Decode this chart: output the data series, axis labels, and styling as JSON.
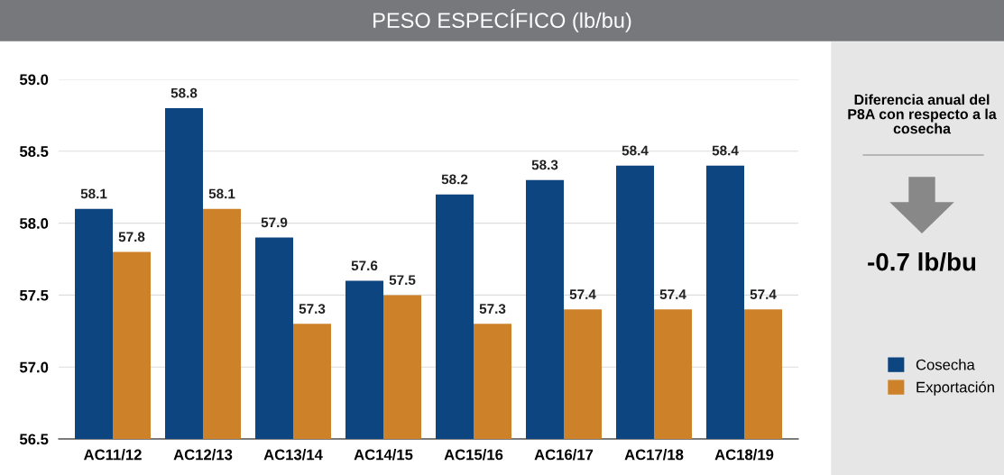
{
  "chart_data": {
    "type": "bar",
    "title": "PESO ESPECÍFICO (lb/bu)",
    "categories": [
      "AC11/12",
      "AC12/13",
      "AC13/14",
      "AC14/15",
      "AC15/16",
      "AC16/17",
      "AC17/18",
      "AC18/19"
    ],
    "series": [
      {
        "name": "Cosecha",
        "color": "#0d4580",
        "values": [
          58.1,
          58.8,
          57.9,
          57.6,
          58.2,
          58.3,
          58.4,
          58.4
        ]
      },
      {
        "name": "Exportación",
        "color": "#cd8229",
        "values": [
          57.8,
          58.1,
          57.3,
          57.5,
          57.3,
          57.4,
          57.4,
          57.4
        ]
      }
    ],
    "ylim": [
      56.5,
      59.0
    ],
    "yticks": [
      56.5,
      {
        "value": 57,
        "label": "57.0"
      },
      57.5,
      {
        "value": 58,
        "label": "58.0"
      },
      58.5,
      {
        "value": 59,
        "label": "59.0"
      }
    ],
    "grid": "y",
    "legend": "right",
    "data_labels": true,
    "annotations": [
      "Diferencia anual del P8A con respecto a la cosecha",
      "-0.7 lb/bu"
    ]
  }
}
